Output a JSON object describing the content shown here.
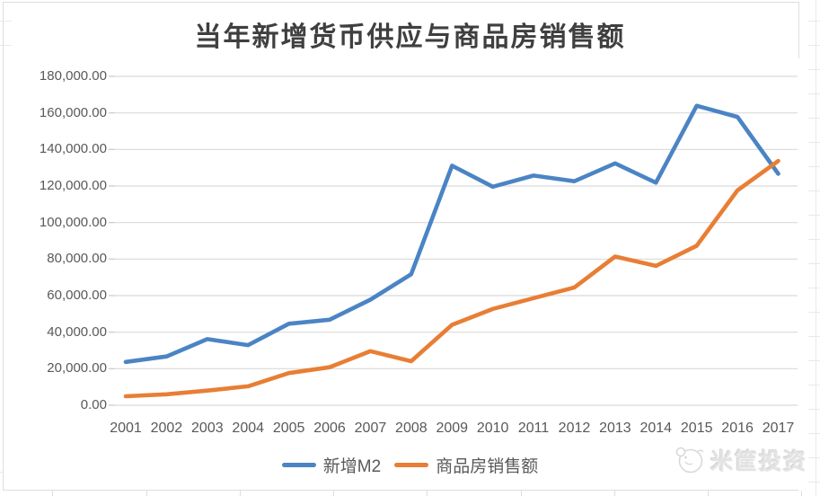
{
  "chart_data": {
    "type": "line",
    "title": "当年新增货币供应与商品房销售额",
    "categories": [
      "2001",
      "2002",
      "2003",
      "2004",
      "2005",
      "2006",
      "2007",
      "2008",
      "2009",
      "2010",
      "2011",
      "2012",
      "2013",
      "2014",
      "2015",
      "2016",
      "2017"
    ],
    "series": [
      {
        "name": "新增M2",
        "color": "#4B84C4",
        "values": [
          23700,
          26700,
          36200,
          32900,
          44600,
          46800,
          57800,
          71700,
          131100,
          119600,
          125700,
          122600,
          132400,
          121800,
          163900,
          157800,
          126700
        ]
      },
      {
        "name": "商品房销售额",
        "color": "#E87E35",
        "values": [
          4900,
          6000,
          8000,
          10400,
          17600,
          20800,
          29600,
          24100,
          44000,
          52700,
          58600,
          64500,
          81400,
          76300,
          87300,
          117600,
          133700
        ]
      }
    ],
    "ylim": [
      0,
      180000
    ],
    "ytick_step": 20000,
    "y_tick_labels": [
      "0.00",
      "20,000.00",
      "40,000.00",
      "60,000.00",
      "80,000.00",
      "100,000.00",
      "120,000.00",
      "140,000.00",
      "160,000.00",
      "180,000.00"
    ],
    "xlabel": "",
    "ylabel": "",
    "grid": true,
    "legend_position": "bottom",
    "grid_color": "#D9D9D9",
    "axis_text_color": "#595959",
    "title_color": "#3F3F3F"
  },
  "watermark": {
    "text": "米筐投资",
    "logo_icon": "mikuang-mascot-logo"
  }
}
